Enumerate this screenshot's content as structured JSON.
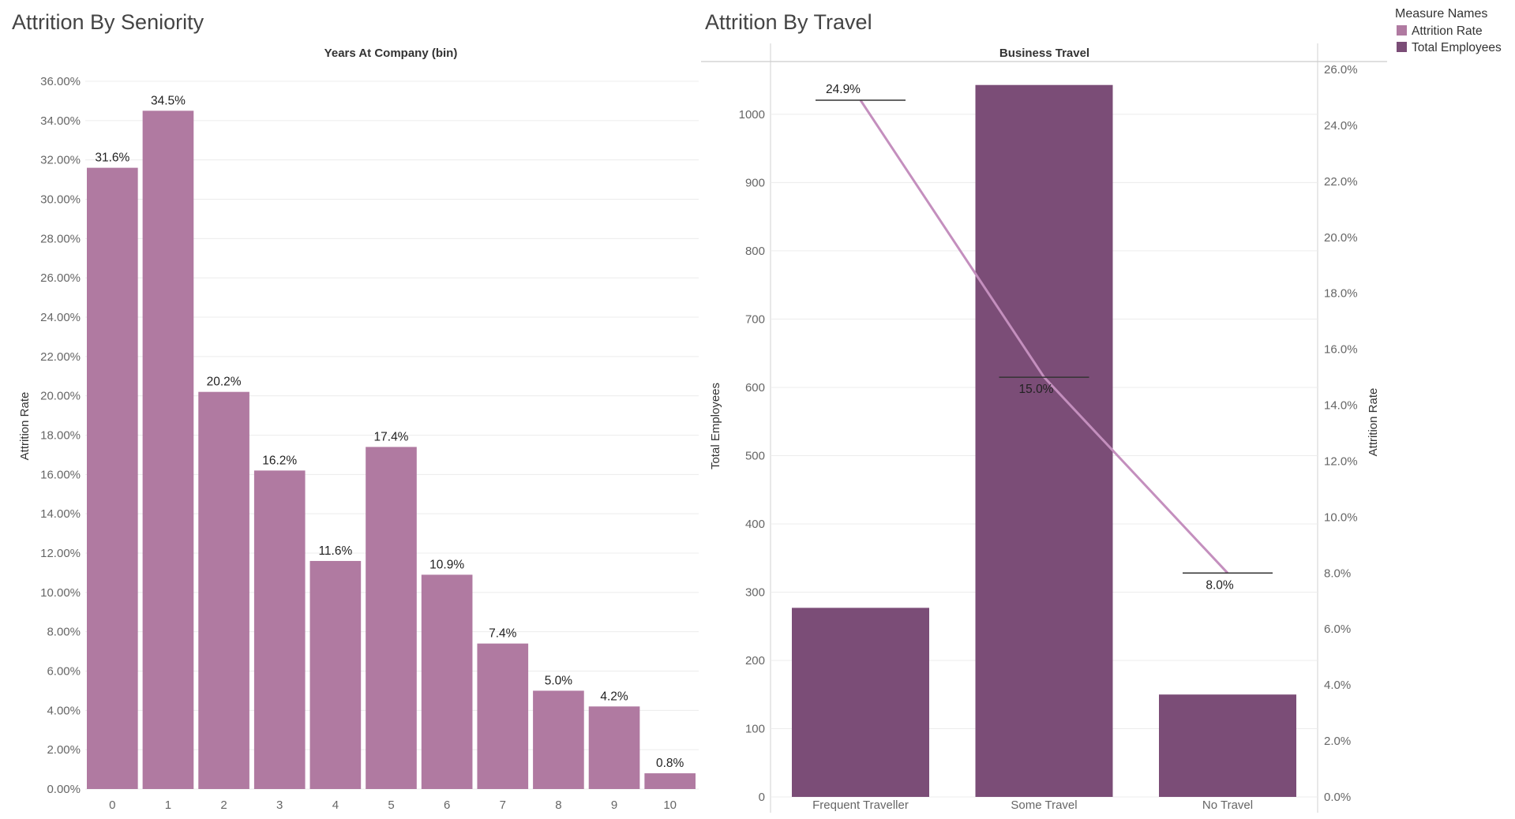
{
  "legend": {
    "title": "Measure Names",
    "items": [
      {
        "label": "Attrition Rate",
        "color": "#b07aa1"
      },
      {
        "label": "Total Employees",
        "color": "#7b4d77"
      }
    ]
  },
  "chart_data": [
    {
      "type": "bar",
      "title": "Attrition By Seniority",
      "column_header": "Years At Company (bin)",
      "ylabel": "Attrition Rate",
      "ylim": [
        0,
        36
      ],
      "y_ticks": [
        "0.00%",
        "2.00%",
        "4.00%",
        "6.00%",
        "8.00%",
        "10.00%",
        "12.00%",
        "14.00%",
        "16.00%",
        "18.00%",
        "20.00%",
        "22.00%",
        "24.00%",
        "26.00%",
        "28.00%",
        "30.00%",
        "32.00%",
        "34.00%",
        "36.00%"
      ],
      "categories": [
        "0",
        "1",
        "2",
        "3",
        "4",
        "5",
        "6",
        "7",
        "8",
        "9",
        "10"
      ],
      "values": [
        31.6,
        34.5,
        20.2,
        16.2,
        11.6,
        17.4,
        10.9,
        7.4,
        5.0,
        4.2,
        0.8
      ],
      "data_labels": [
        "31.6%",
        "34.5%",
        "20.2%",
        "16.2%",
        "11.6%",
        "17.4%",
        "10.9%",
        "7.4%",
        "5.0%",
        "4.2%",
        "0.8%"
      ],
      "color": "#b07aa1",
      "grid": true
    },
    {
      "type": "bar",
      "title": "Attrition By Travel",
      "column_header": "Business Travel",
      "categories": [
        "Frequent Traveller",
        "Some Travel",
        "No Travel"
      ],
      "series": [
        {
          "name": "Total Employees",
          "type": "bar",
          "axis": "left",
          "values": [
            277,
            1043,
            150
          ],
          "color": "#7b4d77"
        },
        {
          "name": "Attrition Rate",
          "type": "line",
          "axis": "right",
          "values": [
            24.9,
            15.0,
            8.0
          ],
          "data_labels": [
            "24.9%",
            "15.0%",
            "8.0%"
          ],
          "color": "#c48fbe"
        }
      ],
      "ylabel_left": "Total Employees",
      "ylim_left": [
        0,
        1060
      ],
      "y_ticks_left": [
        "0",
        "100",
        "200",
        "300",
        "400",
        "500",
        "600",
        "700",
        "800",
        "900",
        "1000"
      ],
      "ylabel_right": "Attrition Rate",
      "ylim_right": [
        0,
        26
      ],
      "y_ticks_right": [
        "0.0%",
        "2.0%",
        "4.0%",
        "6.0%",
        "8.0%",
        "10.0%",
        "12.0%",
        "14.0%",
        "16.0%",
        "18.0%",
        "20.0%",
        "22.0%",
        "24.0%",
        "26.0%"
      ],
      "grid": true,
      "legend_position": "top-right"
    }
  ]
}
